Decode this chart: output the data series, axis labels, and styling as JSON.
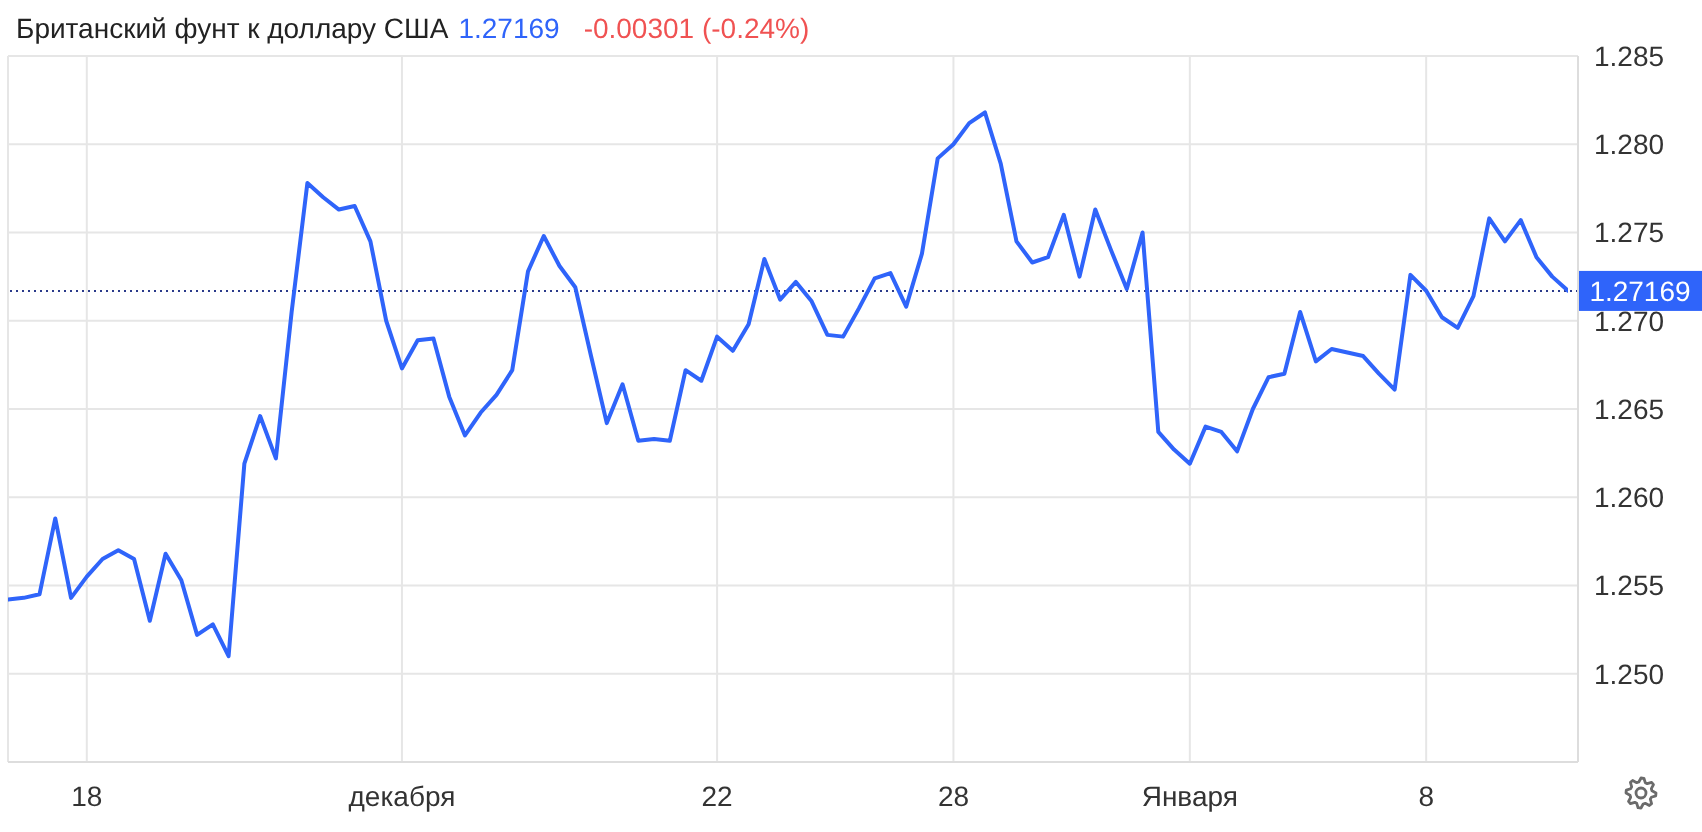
{
  "chart_data": {
    "type": "line",
    "title": "Британский фунт к доллару США",
    "subtitle": "1.27169",
    "annotations": [
      "-0.00301 (-0.24%)"
    ],
    "categories": [
      null,
      null,
      null,
      null,
      null,
      "18",
      null,
      null,
      null,
      null,
      null,
      null,
      null,
      null,
      null,
      null,
      null,
      null,
      null,
      null,
      null,
      null,
      null,
      null,
      null,
      "декабря",
      null,
      null,
      null,
      null,
      null,
      null,
      null,
      null,
      null,
      null,
      null,
      null,
      null,
      null,
      null,
      null,
      null,
      null,
      null,
      "22",
      null,
      null,
      null,
      null,
      null,
      null,
      null,
      null,
      null,
      null,
      null,
      null,
      null,
      null,
      "28",
      null,
      null,
      null,
      null,
      null,
      null,
      null,
      null,
      null,
      null,
      null,
      null,
      null,
      null,
      "Января",
      null,
      null,
      null,
      null,
      null,
      null,
      null,
      null,
      null,
      null,
      null,
      null,
      null,
      null,
      "8",
      null,
      null,
      null,
      null,
      null,
      null,
      null,
      null,
      null
    ],
    "series": [
      {
        "color": "#2f64fa",
        "values": [
          1.2542,
          1.2543,
          1.2545,
          1.2588,
          1.2543,
          1.2555,
          1.2565,
          1.257,
          1.2565,
          1.253,
          1.2568,
          1.2553,
          1.2522,
          1.2528,
          1.251,
          1.2619,
          1.2646,
          1.2622,
          1.2705,
          1.2778,
          1.277,
          1.2763,
          1.2765,
          1.2745,
          1.27,
          1.2673,
          1.2689,
          1.269,
          1.2657,
          1.2635,
          1.2648,
          1.2658,
          1.2672,
          1.2728,
          1.2748,
          1.2731,
          1.2719,
          1.268,
          1.2642,
          1.2664,
          1.2632,
          1.2633,
          1.2632,
          1.2672,
          1.2666,
          1.2691,
          1.2683,
          1.2698,
          1.2735,
          1.2712,
          1.2722,
          1.2711,
          1.2692,
          1.2691,
          1.2707,
          1.2724,
          1.2727,
          1.2708,
          1.2738,
          1.2792,
          1.28,
          1.2812,
          1.2818,
          1.2789,
          1.2745,
          1.2733,
          1.2736,
          1.276,
          1.2725,
          1.2763,
          1.274,
          1.2718,
          1.275,
          1.2637,
          1.2627,
          1.2619,
          1.264,
          1.2637,
          1.2626,
          1.265,
          1.2668,
          1.267,
          1.2705,
          1.2677,
          1.2684,
          1.2682,
          1.268,
          1.267,
          1.2661,
          1.2726,
          1.2717,
          1.2702,
          1.2696,
          1.2714,
          1.2758,
          1.2745,
          1.2757,
          1.2736,
          1.2725,
          1.2717
        ]
      }
    ],
    "ylim": [
      1.245,
      1.285
    ],
    "yticks": [
      {
        "value": 1.25,
        "label": "1.250"
      },
      1.255,
      {
        "value": 1.26,
        "label": "1.260"
      },
      1.265,
      {
        "value": 1.27,
        "label": "1.270"
      },
      1.275,
      {
        "value": 1.28,
        "label": "1.280"
      },
      1.285
    ],
    "grid": true,
    "marker": "none",
    "line_style": "solid",
    "ref_lines": [
      {
        "axis": "y",
        "value": 1.27169,
        "label": "1.27169",
        "color": "#2a3a8a",
        "line_style": "dotted"
      }
    ]
  }
}
